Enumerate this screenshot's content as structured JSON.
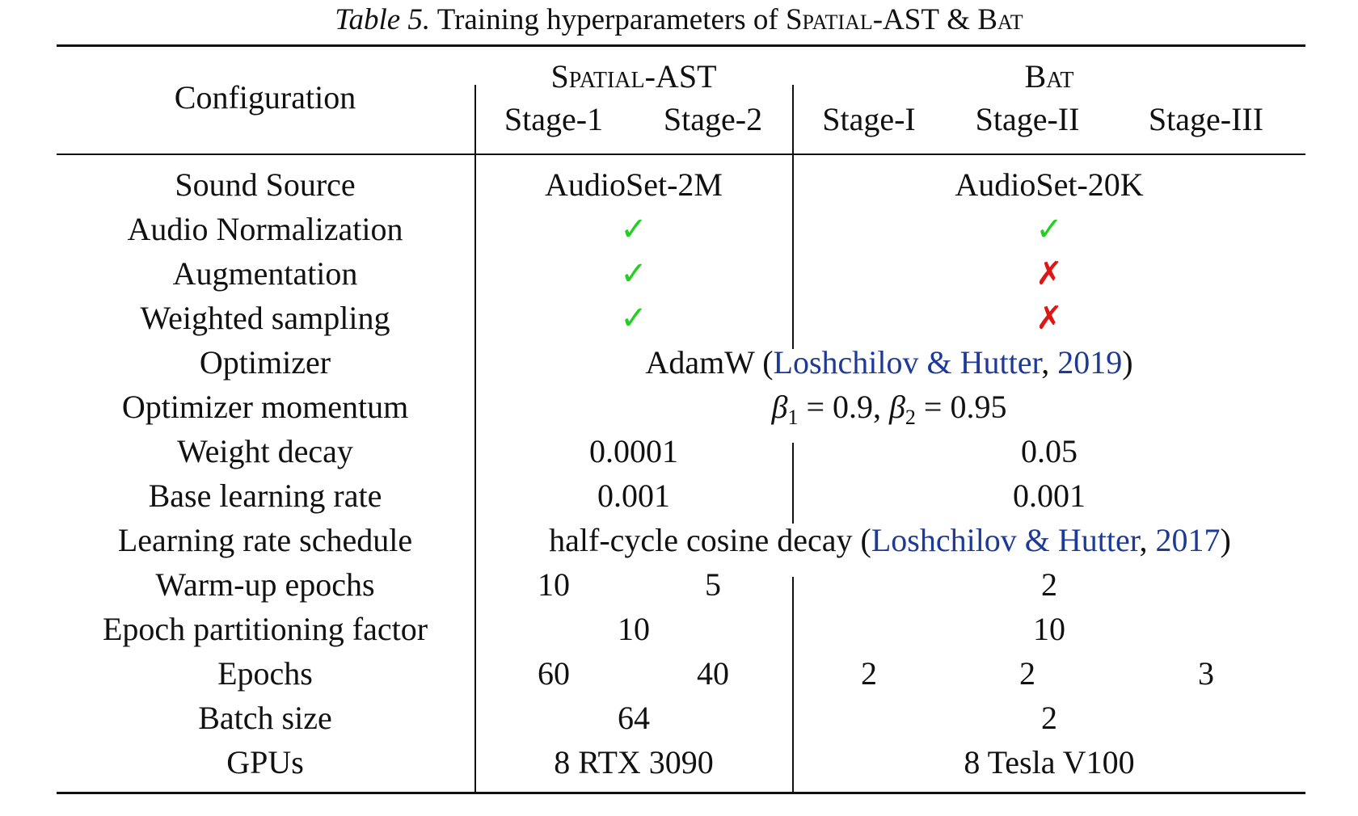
{
  "caption": {
    "label": "Table 5.",
    "text_before": "Training hyperparameters of",
    "model_a": "Spatial-AST",
    "ampersand": "&",
    "model_b": "Bat"
  },
  "header": {
    "config": "Configuration",
    "group_a": "Spatial-AST",
    "group_b": "Bat",
    "stages": [
      "Stage-1",
      "Stage-2",
      "Stage-I",
      "Stage-II",
      "Stage-III"
    ]
  },
  "rows": {
    "sound_source": {
      "label": "Sound Source",
      "a": "AudioSet-2M",
      "b": "AudioSet-20K"
    },
    "audio_norm": {
      "label": "Audio Normalization",
      "a": "✓",
      "b": "✓"
    },
    "augmentation": {
      "label": "Augmentation",
      "a": "✓",
      "b": "✗"
    },
    "weighted_sampling": {
      "label": "Weighted sampling",
      "a": "✓",
      "b": "✗"
    },
    "optimizer": {
      "label": "Optimizer",
      "value": "AdamW",
      "cite": "Loshchilov & Hutter",
      "year": "2019"
    },
    "momentum": {
      "label": "Optimizer momentum",
      "beta": "β",
      "b1_sub": "1",
      "b1_val": "= 0.9,",
      "b2_sub": "2",
      "b2_val": "= 0.95"
    },
    "weight_decay": {
      "label": "Weight decay",
      "a": "0.0001",
      "b": "0.05"
    },
    "base_lr": {
      "label": "Base learning rate",
      "a": "0.001",
      "b": "0.001"
    },
    "lr_schedule": {
      "label": "Learning rate schedule",
      "value": "half-cycle cosine decay",
      "cite": "Loshchilov & Hutter",
      "year": "2017"
    },
    "warmup": {
      "label": "Warm-up epochs",
      "a1": "10",
      "a2": "5",
      "b": "2"
    },
    "epoch_partition": {
      "label": "Epoch partitioning factor",
      "a": "10",
      "b": "10"
    },
    "epochs": {
      "label": "Epochs",
      "a1": "60",
      "a2": "40",
      "b1": "2",
      "b2": "2",
      "b3": "3"
    },
    "batch_size": {
      "label": "Batch size",
      "a": "64",
      "b": "2"
    },
    "gpus": {
      "label": "GPUs",
      "a": "8 RTX 3090",
      "b": "8 Tesla V100"
    }
  },
  "colors": {
    "check": "#22d022",
    "cross": "#e01515",
    "link": "#1d3a96"
  }
}
